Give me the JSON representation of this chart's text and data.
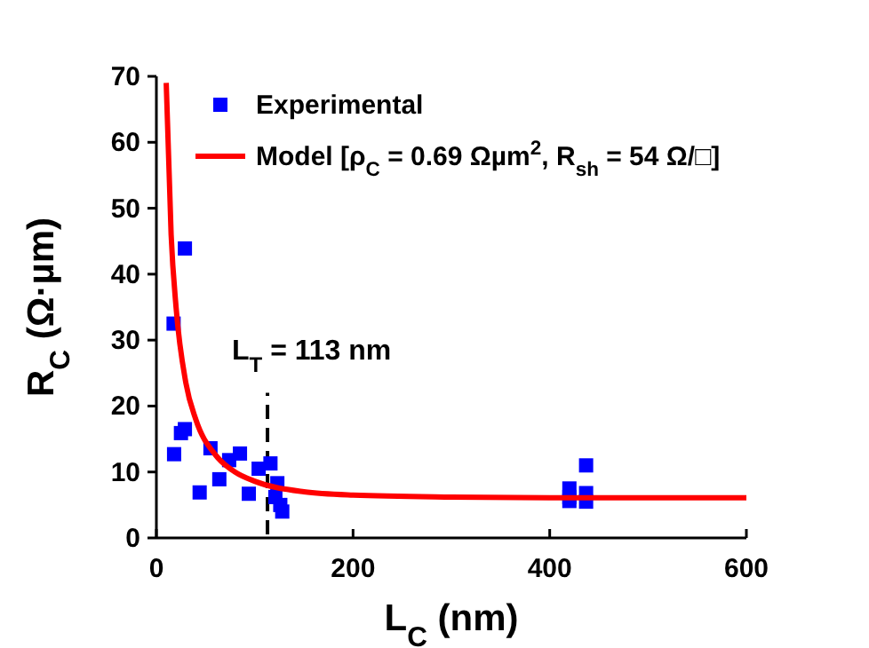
{
  "chart_data": {
    "type": "scatter",
    "xlabel": "L$_{C}$ (nm)",
    "ylabel": "R$_{C}$ (Ω·µm)",
    "xlim": [
      0,
      600
    ],
    "xticks": [
      0,
      200,
      400,
      600
    ],
    "ylim": [
      0,
      70
    ],
    "yticks": [
      0,
      10,
      20,
      30,
      40,
      50,
      60,
      70
    ],
    "grid": false,
    "legend": "top",
    "marker": "square",
    "series": [
      {
        "name": "Experimental",
        "color": "#0000ff",
        "x": [
          17.5,
          29,
          18,
          25,
          29,
          44,
          55,
          64,
          74,
          85,
          94,
          104,
          116,
          123,
          121,
          128,
          126,
          420,
          420,
          420,
          437,
          437,
          437
        ],
        "values": [
          32.5,
          43.9,
          12.7,
          15.9,
          16.5,
          6.9,
          13.6,
          8.9,
          11.8,
          12.8,
          6.7,
          10.5,
          11.3,
          8.3,
          6.2,
          4,
          5,
          7.5,
          6.2,
          5.6,
          11,
          6.8,
          5.5
        ]
      },
      {
        "name": "Model [ρ$_{C}$ = 0.69 Ωµm$^{2}$, R$_{sh}$ = 54 Ω/□]",
        "type": "line",
        "color": "#ff0000",
        "line_style": "solid",
        "marker": "none",
        "x": [
          10,
          15,
          20,
          30,
          40,
          60,
          80,
          100,
          150,
          200,
          300,
          400,
          600
        ],
        "values": [
          69,
          46,
          35,
          23.5,
          18,
          12.6,
          10,
          8.6,
          7,
          6.5,
          6.2,
          6.1,
          6.1
        ]
      }
    ],
    "ref_lines": [
      {
        "axis": "x",
        "value": 113,
        "label": "L$_{T}$ = 113 nm",
        "color": "#000000",
        "line_style": "dashed"
      }
    ]
  }
}
